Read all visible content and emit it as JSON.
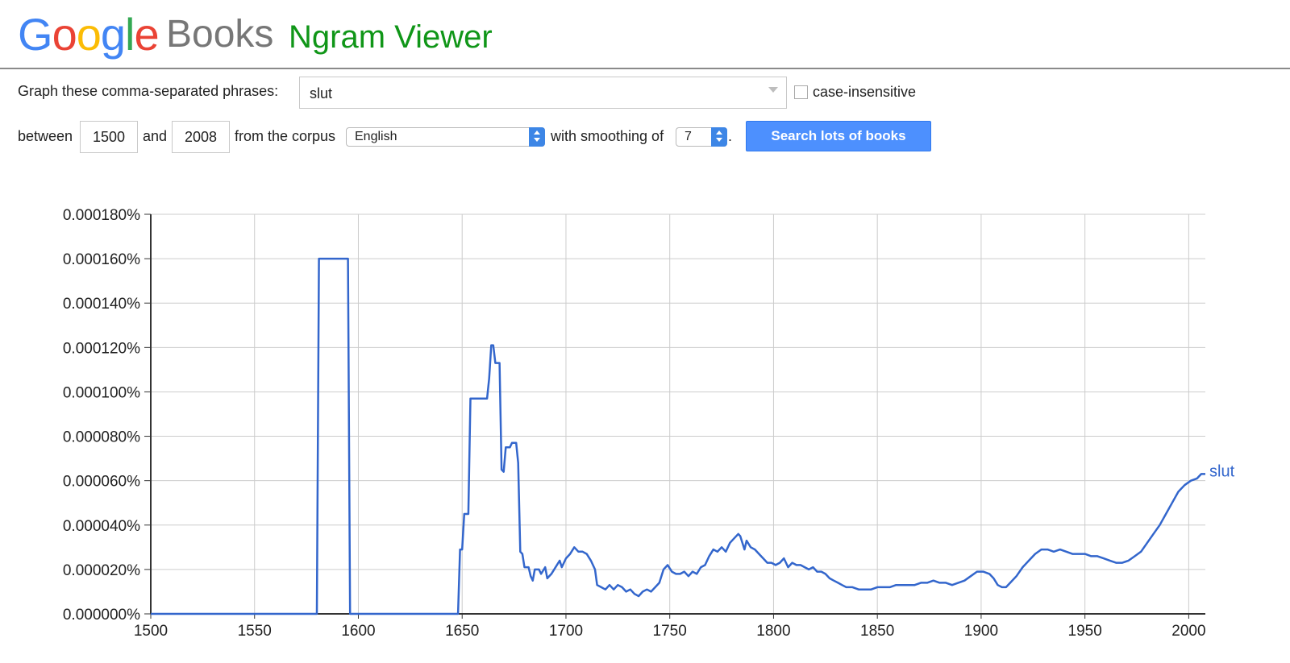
{
  "header": {
    "google_letters": [
      {
        "ch": "G",
        "color": "#4285F4"
      },
      {
        "ch": "o",
        "color": "#EA4335"
      },
      {
        "ch": "o",
        "color": "#FBBC05"
      },
      {
        "ch": "g",
        "color": "#4285F4"
      },
      {
        "ch": "l",
        "color": "#34A853"
      },
      {
        "ch": "e",
        "color": "#EA4335"
      }
    ],
    "books": "Books",
    "ngram": "Ngram Viewer",
    "ngram_color": "#109618"
  },
  "form": {
    "phrases_label": "Graph these comma-separated phrases:",
    "phrases_value": "slut",
    "case_label": "case-insensitive",
    "between_label": "between",
    "year_start": "1500",
    "and_label": "and",
    "year_end": "2008",
    "corpus_label": "from the corpus",
    "corpus_value": "English",
    "smoothing_label": "with smoothing of",
    "smoothing_value": "7",
    "period": ".",
    "search_button": "Search lots of books"
  },
  "chart_data": {
    "type": "line",
    "xlim": [
      1500,
      2008
    ],
    "ylim": [
      0,
      0.00018
    ],
    "x_ticks": [
      1500,
      1550,
      1600,
      1650,
      1700,
      1750,
      1800,
      1850,
      1900,
      1950,
      2000
    ],
    "y_ticks": [
      "0.000000%",
      "0.000020%",
      "0.000040%",
      "0.000060%",
      "0.000080%",
      "0.000100%",
      "0.000120%",
      "0.000140%",
      "0.000160%",
      "0.000180%"
    ],
    "grid": true,
    "series": [
      {
        "name": "slut",
        "color": "#3366cc",
        "points": [
          [
            1500,
            0
          ],
          [
            1580,
            0
          ],
          [
            1581,
            0.00016
          ],
          [
            1595,
            0.00016
          ],
          [
            1596,
            0
          ],
          [
            1648,
            0
          ],
          [
            1649,
            2.9e-05
          ],
          [
            1650,
            2.9e-05
          ],
          [
            1651,
            4.5e-05
          ],
          [
            1653,
            4.5e-05
          ],
          [
            1654,
            9.7e-05
          ],
          [
            1662,
            9.7e-05
          ],
          [
            1663,
            0.000106
          ],
          [
            1664,
            0.000121
          ],
          [
            1665,
            0.000121
          ],
          [
            1666,
            0.000113
          ],
          [
            1668,
            0.000113
          ],
          [
            1669,
            6.5e-05
          ],
          [
            1670,
            6.4e-05
          ],
          [
            1671,
            7.5e-05
          ],
          [
            1673,
            7.5e-05
          ],
          [
            1674,
            7.7e-05
          ],
          [
            1676,
            7.7e-05
          ],
          [
            1677,
            6.8e-05
          ],
          [
            1678,
            2.8e-05
          ],
          [
            1679,
            2.7e-05
          ],
          [
            1680,
            2.1e-05
          ],
          [
            1682,
            2.1e-05
          ],
          [
            1683,
            1.7e-05
          ],
          [
            1684,
            1.5e-05
          ],
          [
            1685,
            2e-05
          ],
          [
            1687,
            2e-05
          ],
          [
            1688,
            1.8e-05
          ],
          [
            1690,
            2.1e-05
          ],
          [
            1691,
            1.6e-05
          ],
          [
            1693,
            1.8e-05
          ],
          [
            1695,
            2.1e-05
          ],
          [
            1697,
            2.4e-05
          ],
          [
            1698,
            2.1e-05
          ],
          [
            1700,
            2.5e-05
          ],
          [
            1702,
            2.7e-05
          ],
          [
            1704,
            3e-05
          ],
          [
            1706,
            2.8e-05
          ],
          [
            1708,
            2.8e-05
          ],
          [
            1710,
            2.7e-05
          ],
          [
            1712,
            2.4e-05
          ],
          [
            1714,
            2e-05
          ],
          [
            1715,
            1.3e-05
          ],
          [
            1717,
            1.2e-05
          ],
          [
            1719,
            1.1e-05
          ],
          [
            1721,
            1.3e-05
          ],
          [
            1723,
            1.1e-05
          ],
          [
            1725,
            1.3e-05
          ],
          [
            1727,
            1.2e-05
          ],
          [
            1729,
            1e-05
          ],
          [
            1731,
            1.1e-05
          ],
          [
            1733,
            9e-06
          ],
          [
            1735,
            8e-06
          ],
          [
            1737,
            1e-05
          ],
          [
            1739,
            1.1e-05
          ],
          [
            1741,
            1e-05
          ],
          [
            1743,
            1.2e-05
          ],
          [
            1745,
            1.4e-05
          ],
          [
            1747,
            2e-05
          ],
          [
            1749,
            2.2e-05
          ],
          [
            1751,
            1.9e-05
          ],
          [
            1753,
            1.8e-05
          ],
          [
            1755,
            1.8e-05
          ],
          [
            1757,
            1.9e-05
          ],
          [
            1759,
            1.7e-05
          ],
          [
            1761,
            1.9e-05
          ],
          [
            1763,
            1.8e-05
          ],
          [
            1765,
            2.1e-05
          ],
          [
            1767,
            2.2e-05
          ],
          [
            1769,
            2.6e-05
          ],
          [
            1771,
            2.9e-05
          ],
          [
            1773,
            2.8e-05
          ],
          [
            1775,
            3e-05
          ],
          [
            1777,
            2.8e-05
          ],
          [
            1779,
            3.2e-05
          ],
          [
            1781,
            3.4e-05
          ],
          [
            1783,
            3.6e-05
          ],
          [
            1784,
            3.5e-05
          ],
          [
            1786,
            2.9e-05
          ],
          [
            1787,
            3.3e-05
          ],
          [
            1789,
            3e-05
          ],
          [
            1791,
            2.9e-05
          ],
          [
            1793,
            2.7e-05
          ],
          [
            1795,
            2.5e-05
          ],
          [
            1797,
            2.3e-05
          ],
          [
            1799,
            2.3e-05
          ],
          [
            1801,
            2.2e-05
          ],
          [
            1803,
            2.3e-05
          ],
          [
            1805,
            2.5e-05
          ],
          [
            1807,
            2.1e-05
          ],
          [
            1809,
            2.3e-05
          ],
          [
            1811,
            2.2e-05
          ],
          [
            1813,
            2.2e-05
          ],
          [
            1815,
            2.1e-05
          ],
          [
            1817,
            2e-05
          ],
          [
            1819,
            2.1e-05
          ],
          [
            1821,
            1.9e-05
          ],
          [
            1823,
            1.9e-05
          ],
          [
            1825,
            1.8e-05
          ],
          [
            1827,
            1.6e-05
          ],
          [
            1829,
            1.5e-05
          ],
          [
            1831,
            1.4e-05
          ],
          [
            1833,
            1.3e-05
          ],
          [
            1835,
            1.2e-05
          ],
          [
            1838,
            1.2e-05
          ],
          [
            1841,
            1.1e-05
          ],
          [
            1844,
            1.1e-05
          ],
          [
            1847,
            1.1e-05
          ],
          [
            1850,
            1.2e-05
          ],
          [
            1853,
            1.2e-05
          ],
          [
            1856,
            1.2e-05
          ],
          [
            1859,
            1.3e-05
          ],
          [
            1862,
            1.3e-05
          ],
          [
            1865,
            1.3e-05
          ],
          [
            1868,
            1.3e-05
          ],
          [
            1871,
            1.4e-05
          ],
          [
            1874,
            1.4e-05
          ],
          [
            1877,
            1.5e-05
          ],
          [
            1880,
            1.4e-05
          ],
          [
            1883,
            1.4e-05
          ],
          [
            1886,
            1.3e-05
          ],
          [
            1889,
            1.4e-05
          ],
          [
            1892,
            1.5e-05
          ],
          [
            1895,
            1.7e-05
          ],
          [
            1898,
            1.9e-05
          ],
          [
            1901,
            1.9e-05
          ],
          [
            1904,
            1.8e-05
          ],
          [
            1906,
            1.6e-05
          ],
          [
            1908,
            1.3e-05
          ],
          [
            1910,
            1.2e-05
          ],
          [
            1912,
            1.2e-05
          ],
          [
            1914,
            1.4e-05
          ],
          [
            1917,
            1.7e-05
          ],
          [
            1920,
            2.1e-05
          ],
          [
            1923,
            2.4e-05
          ],
          [
            1926,
            2.7e-05
          ],
          [
            1929,
            2.9e-05
          ],
          [
            1932,
            2.9e-05
          ],
          [
            1935,
            2.8e-05
          ],
          [
            1938,
            2.9e-05
          ],
          [
            1941,
            2.8e-05
          ],
          [
            1944,
            2.7e-05
          ],
          [
            1947,
            2.7e-05
          ],
          [
            1950,
            2.7e-05
          ],
          [
            1953,
            2.6e-05
          ],
          [
            1956,
            2.6e-05
          ],
          [
            1959,
            2.5e-05
          ],
          [
            1962,
            2.4e-05
          ],
          [
            1965,
            2.3e-05
          ],
          [
            1968,
            2.3e-05
          ],
          [
            1971,
            2.4e-05
          ],
          [
            1974,
            2.6e-05
          ],
          [
            1977,
            2.8e-05
          ],
          [
            1980,
            3.2e-05
          ],
          [
            1983,
            3.6e-05
          ],
          [
            1986,
            4e-05
          ],
          [
            1989,
            4.5e-05
          ],
          [
            1992,
            5e-05
          ],
          [
            1995,
            5.5e-05
          ],
          [
            1998,
            5.8e-05
          ],
          [
            2001,
            6e-05
          ],
          [
            2004,
            6.1e-05
          ],
          [
            2006,
            6.3e-05
          ],
          [
            2008,
            6.3e-05
          ]
        ]
      }
    ]
  }
}
